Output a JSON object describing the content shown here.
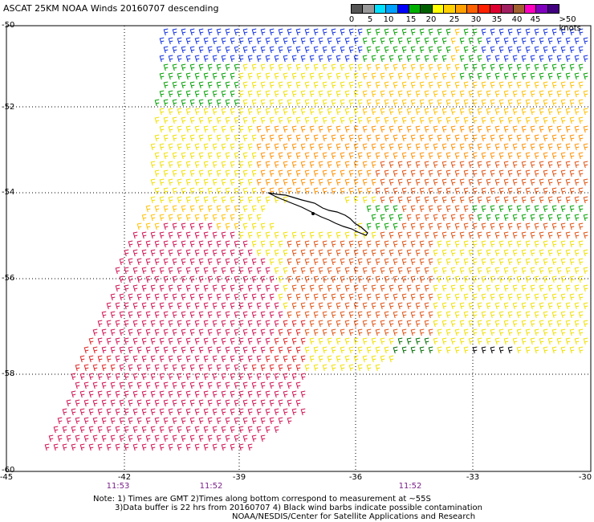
{
  "title": "ASCAT 25KM NOAA Winds 20160707 descending",
  "legend": {
    "ticks": [
      "0",
      "5",
      "10",
      "15",
      "20",
      "25",
      "30",
      "35",
      "40",
      "45",
      ">50 knots"
    ],
    "colors": [
      "#555555",
      "#999999",
      "#00e0ff",
      "#00a0ff",
      "#0000ff",
      "#00b000",
      "#006000",
      "#ffff00",
      "#ffd000",
      "#ffa000",
      "#ff6000",
      "#ff2000",
      "#e00030",
      "#a02060",
      "#a06030",
      "#ff00c0",
      "#8000c0",
      "#400080"
    ]
  },
  "axes": {
    "lat_labels": [
      "-50",
      "-52",
      "-54",
      "-56",
      "-58",
      "-60"
    ],
    "lon_labels": [
      "-45",
      "-42",
      "-39",
      "-36",
      "-33",
      "-30"
    ],
    "times": [
      "11:53",
      "11:52",
      "11:52"
    ]
  },
  "notes": {
    "line1": "Note: 1) Times are GMT 2)Times along bottom correspond to measurement at ~55S",
    "line2": "3)Data buffer is 22 hrs from 20160707 4) Black wind barbs indicate possible contamination",
    "line3": "NOAA/NESDIS/Center for Satellite Applications and Research"
  },
  "landmass": "South Georgia island (black outline)"
}
